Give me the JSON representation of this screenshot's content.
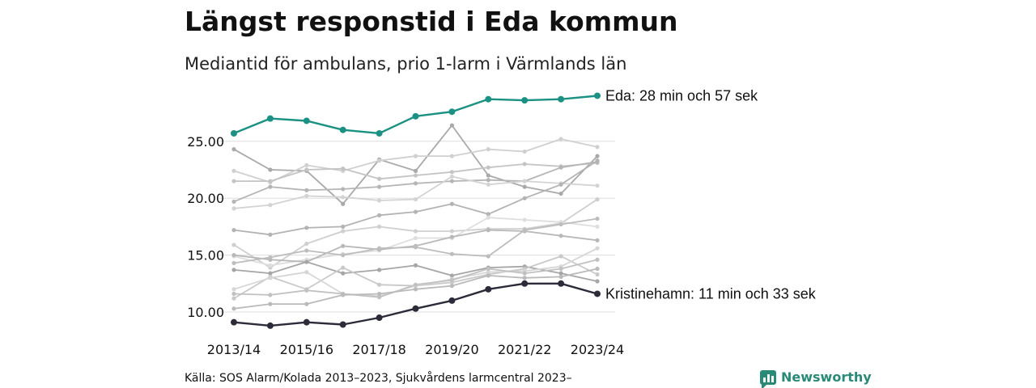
{
  "chart_data": {
    "type": "line",
    "title": "Längst responstid i Eda kommun",
    "subtitle": "Mediantid för ambulans, prio 1-larm i Värmlands län",
    "source": "Källa: SOS Alarm/Kolada 2013–2023, Sjukvårdens larmcentral 2023–",
    "brand": "Newsworthy",
    "x": [
      "2013/14",
      "2014/15",
      "2015/16",
      "2016/17",
      "2017/18",
      "2018/19",
      "2019/20",
      "2020/21",
      "2021/22",
      "2022/23",
      "2023/24"
    ],
    "x_tick_labels": [
      "2013/14",
      "2015/16",
      "2017/18",
      "2019/20",
      "2021/22",
      "2023/24"
    ],
    "y_ticks": [
      "10.00",
      "15.00",
      "20.00",
      "25.00"
    ],
    "y_tick_values": [
      10,
      15,
      20,
      25
    ],
    "ylim": [
      8.5,
      29.5
    ],
    "grid": true,
    "highlight_series": [
      {
        "label": "Eda: 28 min och 57 sek",
        "color": "#1a9182",
        "values": [
          25.7,
          27.0,
          26.8,
          26.0,
          25.7,
          27.2,
          27.6,
          28.7,
          28.6,
          28.7,
          29.0
        ]
      },
      {
        "label": "Kristinehamn: 11 min och 33 sek",
        "color": "#2b2b3a",
        "values": [
          9.1,
          8.8,
          9.1,
          8.9,
          9.5,
          10.3,
          11.0,
          12.0,
          12.5,
          12.5,
          11.6
        ]
      }
    ],
    "background_series": [
      {
        "color": "#a9a9a9",
        "values": [
          24.3,
          22.5,
          22.4,
          19.5,
          23.4,
          22.4,
          26.4,
          22.0,
          21.0,
          20.4,
          23.7
        ]
      },
      {
        "color": "#d0d0d0",
        "values": [
          22.4,
          21.4,
          22.9,
          22.4,
          23.3,
          23.7,
          23.7,
          24.3,
          24.1,
          25.2,
          24.5
        ]
      },
      {
        "color": "#c4c4c4",
        "values": [
          21.5,
          21.5,
          22.5,
          22.6,
          21.7,
          22.0,
          22.3,
          22.7,
          23.0,
          22.8,
          23.1
        ]
      },
      {
        "color": "#b5b5b5",
        "values": [
          19.7,
          21.0,
          20.7,
          20.8,
          21.0,
          21.3,
          21.5,
          21.6,
          21.5,
          22.7,
          23.2
        ]
      },
      {
        "color": "#d3d3d3",
        "values": [
          19.1,
          19.4,
          20.2,
          20.1,
          19.8,
          19.9,
          21.9,
          21.2,
          21.5,
          21.3,
          21.1
        ]
      },
      {
        "color": "#b3b3b3",
        "values": [
          17.2,
          16.8,
          17.4,
          17.5,
          18.5,
          18.8,
          19.5,
          18.6,
          20.0,
          21.2,
          23.3
        ]
      },
      {
        "color": "#cfcfcf",
        "values": [
          15.9,
          13.9,
          16.0,
          17.1,
          17.5,
          17.1,
          17.1,
          17.3,
          17.3,
          17.8,
          19.9
        ]
      },
      {
        "color": "#dedede",
        "values": [
          14.9,
          14.1,
          14.6,
          15.1,
          15.4,
          16.5,
          16.5,
          18.3,
          18.1,
          17.9,
          17.5
        ]
      },
      {
        "color": "#b8b8b8",
        "values": [
          15.0,
          14.6,
          14.4,
          15.8,
          15.5,
          15.8,
          16.6,
          17.2,
          17.1,
          16.7,
          16.3
        ]
      },
      {
        "color": "#bdbdbd",
        "values": [
          14.3,
          14.8,
          15.4,
          15.0,
          15.6,
          15.7,
          15.1,
          14.9,
          17.2,
          17.7,
          18.2
        ]
      },
      {
        "color": "#a6a6a6",
        "values": [
          13.7,
          13.4,
          14.4,
          13.4,
          13.7,
          14.1,
          13.2,
          13.9,
          14.0,
          13.4,
          12.7
        ]
      },
      {
        "color": "#c9c9c9",
        "values": [
          11.2,
          13.1,
          12.0,
          13.9,
          12.4,
          12.3,
          12.6,
          13.3,
          13.8,
          14.9,
          13.3
        ]
      },
      {
        "color": "#d6d6d6",
        "values": [
          12.0,
          13.0,
          13.5,
          11.6,
          11.4,
          12.3,
          12.9,
          13.5,
          13.6,
          14.0,
          15.6
        ]
      },
      {
        "color": "#c1c1c1",
        "values": [
          11.6,
          11.5,
          11.9,
          11.6,
          11.3,
          12.4,
          12.8,
          13.8,
          13.4,
          13.8,
          14.6
        ]
      },
      {
        "color": "#bababa",
        "values": [
          10.3,
          10.7,
          10.7,
          11.5,
          11.6,
          12.0,
          12.3,
          13.2,
          13.0,
          13.1,
          13.8
        ]
      }
    ]
  }
}
